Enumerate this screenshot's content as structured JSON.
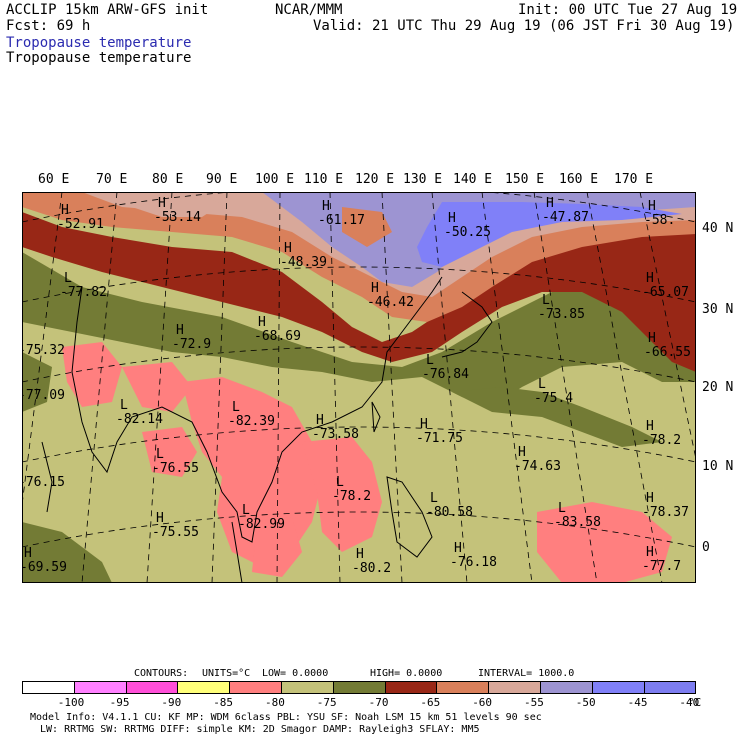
{
  "header": {
    "line1_left": "ACCLIP 15km ARW-GFS init",
    "line1_center": "NCAR/MMM",
    "line1_right": "Init: 00 UTC Tue 27 Aug 19",
    "line2_left": "Fcst:   69 h",
    "line2_right": "Valid: 21 UTC Thu 29 Aug 19 (06 JST Fri 30 Aug 19)",
    "field_title_1": "Tropopause temperature",
    "field_title_2": "Tropopause temperature"
  },
  "longitude_labels": [
    "60 E",
    "70 E",
    "80 E",
    "90 E",
    "100 E",
    "110 E",
    "120 E",
    "130 E",
    "140 E",
    "150 E",
    "160 E",
    "170 E"
  ],
  "latitude_labels": [
    "40 N",
    "30 N",
    "20 N",
    "10 N",
    "0"
  ],
  "map_labels": [
    {
      "sym": "H",
      "val": "-52.91"
    },
    {
      "sym": "H",
      "val": "-53.14"
    },
    {
      "sym": "H",
      "val": "-61.17"
    },
    {
      "sym": "H",
      "val": "-50.25"
    },
    {
      "sym": "H",
      "val": "-47.87"
    },
    {
      "sym": "H",
      "val": "-58."
    },
    {
      "sym": "H",
      "val": "-48.39"
    },
    {
      "sym": "L",
      "val": "-77.82"
    },
    {
      "sym": "H",
      "val": "-46.42"
    },
    {
      "sym": "H",
      "val": "-65.07"
    },
    {
      "sym": "L",
      "val": "-73.85"
    },
    {
      "sym": "H",
      "val": "-72.9"
    },
    {
      "sym": "H",
      "val": "-68.69"
    },
    {
      "sym": "",
      "val": "-75.32"
    },
    {
      "sym": "H",
      "val": "-66.55"
    },
    {
      "sym": "L",
      "val": "-76.84"
    },
    {
      "sym": "L",
      "val": "-75.4"
    },
    {
      "sym": "",
      "val": "-77.09"
    },
    {
      "sym": "L",
      "val": "-82.14"
    },
    {
      "sym": "L",
      "val": "-82.39"
    },
    {
      "sym": "H",
      "val": "-73.58"
    },
    {
      "sym": "H",
      "val": "-71.75"
    },
    {
      "sym": "H",
      "val": "-78.2"
    },
    {
      "sym": "L",
      "val": "-76.55"
    },
    {
      "sym": "H",
      "val": "-74.63"
    },
    {
      "sym": "",
      "val": "-76.15"
    },
    {
      "sym": "L",
      "val": "-78.2"
    },
    {
      "sym": "L",
      "val": "-80.58"
    },
    {
      "sym": "L",
      "val": "-83.58"
    },
    {
      "sym": "H",
      "val": "-78.37"
    },
    {
      "sym": "H",
      "val": "-75.55"
    },
    {
      "sym": "L",
      "val": "-82.99"
    },
    {
      "sym": "H",
      "val": "-69.59"
    },
    {
      "sym": "H",
      "val": "-80.2"
    },
    {
      "sym": "H",
      "val": "-76.18"
    },
    {
      "sym": "H",
      "val": "-77.7"
    }
  ],
  "contours_line": {
    "label": "CONTOURS:",
    "units": "UNITS=°C",
    "low": "LOW=  0.0000",
    "high": "HIGH=  0.0000",
    "interval": "INTERVAL=    1000.0"
  },
  "colorbar": {
    "colors": [
      "#ffffff",
      "#ff80ff",
      "#ff4fd8",
      "#ffff7a",
      "#ff7f7f",
      "#c4c27a",
      "#737b35",
      "#982716",
      "#d9805b",
      "#d8a89a",
      "#9d94d2",
      "#8080f8",
      "#7d7df0"
    ],
    "ticks": [
      "-100",
      "-95",
      "-90",
      "-85",
      "-80",
      "-75",
      "-70",
      "-65",
      "-60",
      "-55",
      "-50",
      "-45",
      "-40"
    ],
    "unit": "°C"
  },
  "footer": {
    "line1": "Model Info: V4.1.1     CU: KF       MP: WDM 6class  PBL: YSU       SF: Noah LSM     15 km    51 levels   90 sec",
    "line2": "LW: RRTMG     SW: RRTMG   DIFF: simple KM: 2D Smagor DAMP: Rayleigh3  SFLAY: MM5"
  }
}
